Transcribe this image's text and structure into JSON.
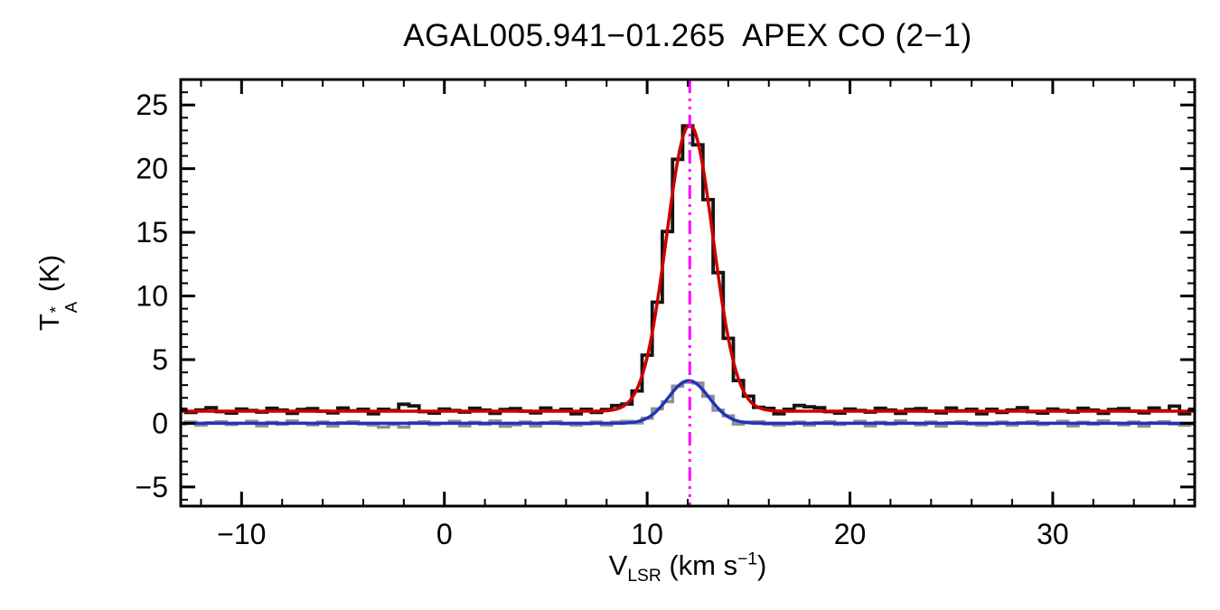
{
  "title": "AGAL005.941−01.265  APEX CO (2−1)",
  "chart_data": {
    "type": "line",
    "title": "AGAL005.941−01.265  APEX CO (2−1)",
    "xlabel": "V_LSR (km s^−1)",
    "ylabel": "T_A^* (K)",
    "xlabel_parts": {
      "main": "V",
      "sub": "LSR",
      "mid": " (km s",
      "sup": "−1",
      "end": ")"
    },
    "ylabel_parts": {
      "main": "T",
      "sup": "*",
      "sub": "A",
      "unit": " (K)"
    },
    "xlim": [
      -13,
      37
    ],
    "ylim": [
      -6.5,
      27
    ],
    "grid": false,
    "legend": false,
    "xticks": {
      "major": [
        -10,
        0,
        10,
        20,
        30
      ],
      "labels": [
        "−10",
        "0",
        "10",
        "20",
        "30"
      ],
      "minor_step": 2
    },
    "yticks": {
      "major": [
        -5,
        0,
        5,
        10,
        15,
        20,
        25
      ],
      "labels": [
        "−5",
        "0",
        "5",
        "10",
        "15",
        "20",
        "25"
      ],
      "minor_step": 1
    },
    "x_start": -13,
    "channel_width": 0.5,
    "series": [
      {
        "name": "spectrum-gray",
        "style": "histogram",
        "color": "#8f8f8f",
        "line_width": 3.5,
        "values": [
          -0.05,
          0.1,
          -0.15,
          0.05,
          0.12,
          -0.1,
          0.0,
          0.15,
          -0.2,
          0.08,
          -0.08,
          0.18,
          0.02,
          -0.12,
          0.1,
          -0.22,
          0.05,
          0.12,
          -0.05,
          -0.15,
          -0.3,
          -0.1,
          -0.3,
          0.05,
          0.12,
          -0.1,
          0.0,
          0.15,
          -0.2,
          0.08,
          -0.08,
          0.18,
          -0.23,
          -0.12,
          0.1,
          -0.22,
          0.05,
          0.12,
          -0.05,
          -0.15,
          -0.05,
          0.1,
          -0.14,
          0.09,
          0.15,
          0.03,
          0.4,
          1.14,
          1.7,
          2.92,
          3.22,
          3.16,
          2.12,
          1.03,
          0.59,
          -0.06,
          0.1,
          0.12,
          -0.05,
          -0.15,
          -0.05,
          0.1,
          -0.15,
          0.05,
          0.12,
          -0.1,
          0.0,
          0.15,
          -0.2,
          0.08,
          -0.08,
          0.18,
          0.02,
          -0.12,
          0.1,
          -0.22,
          0.05,
          0.12,
          -0.05,
          -0.15,
          -0.05,
          0.1,
          -0.15,
          0.05,
          0.12,
          -0.1,
          0.0,
          0.15,
          -0.2,
          0.08,
          -0.08,
          0.18,
          0.02,
          -0.12,
          0.1,
          -0.22,
          0.05,
          0.12,
          -0.05,
          -0.15,
          -0.05
        ]
      },
      {
        "name": "spectrum-black",
        "style": "histogram",
        "color": "#141414",
        "line_width": 3.8,
        "values": [
          1.1,
          0.85,
          1.05,
          1.22,
          0.92,
          0.8,
          1.12,
          1.0,
          0.88,
          1.18,
          1.04,
          0.78,
          1.08,
          1.15,
          0.95,
          0.82,
          1.2,
          0.98,
          1.1,
          0.75,
          1.1,
          1.0,
          1.5,
          1.37,
          0.92,
          0.8,
          1.12,
          1.0,
          0.88,
          1.18,
          1.04,
          0.78,
          1.08,
          1.15,
          0.95,
          0.82,
          1.2,
          0.98,
          1.1,
          0.75,
          1.1,
          0.85,
          1.09,
          1.39,
          1.51,
          2.54,
          5.35,
          9.51,
          15.06,
          20.73,
          23.36,
          21.87,
          17.57,
          11.83,
          6.67,
          3.36,
          2.13,
          1.26,
          1.17,
          0.75,
          1.1,
          1.4,
          1.3,
          1.22,
          0.92,
          0.8,
          1.12,
          1.0,
          0.88,
          1.18,
          1.04,
          0.78,
          1.08,
          1.15,
          0.95,
          0.82,
          1.2,
          0.98,
          1.1,
          0.75,
          1.1,
          0.85,
          1.05,
          1.22,
          0.92,
          0.8,
          1.12,
          1.0,
          0.88,
          1.18,
          1.04,
          0.78,
          1.08,
          1.15,
          0.95,
          0.82,
          1.2,
          0.98,
          1.35,
          0.75,
          1.1
        ]
      }
    ],
    "fits": [
      {
        "name": "gaussian-fit-blue",
        "color": "#2233bb",
        "line_width": 3.5,
        "baseline": 0.0,
        "amplitude": 3.35,
        "center": 12.05,
        "sigma": 1.0
      },
      {
        "name": "gaussian-fit-red",
        "color": "#cc0000",
        "line_width": 3.5,
        "baseline": 0.95,
        "amplitude": 22.5,
        "center": 12.1,
        "sigma": 1.15
      }
    ],
    "vline": {
      "x": 12.1,
      "color": "#ff00ff",
      "style": "dash-dot",
      "line_width": 3
    }
  }
}
